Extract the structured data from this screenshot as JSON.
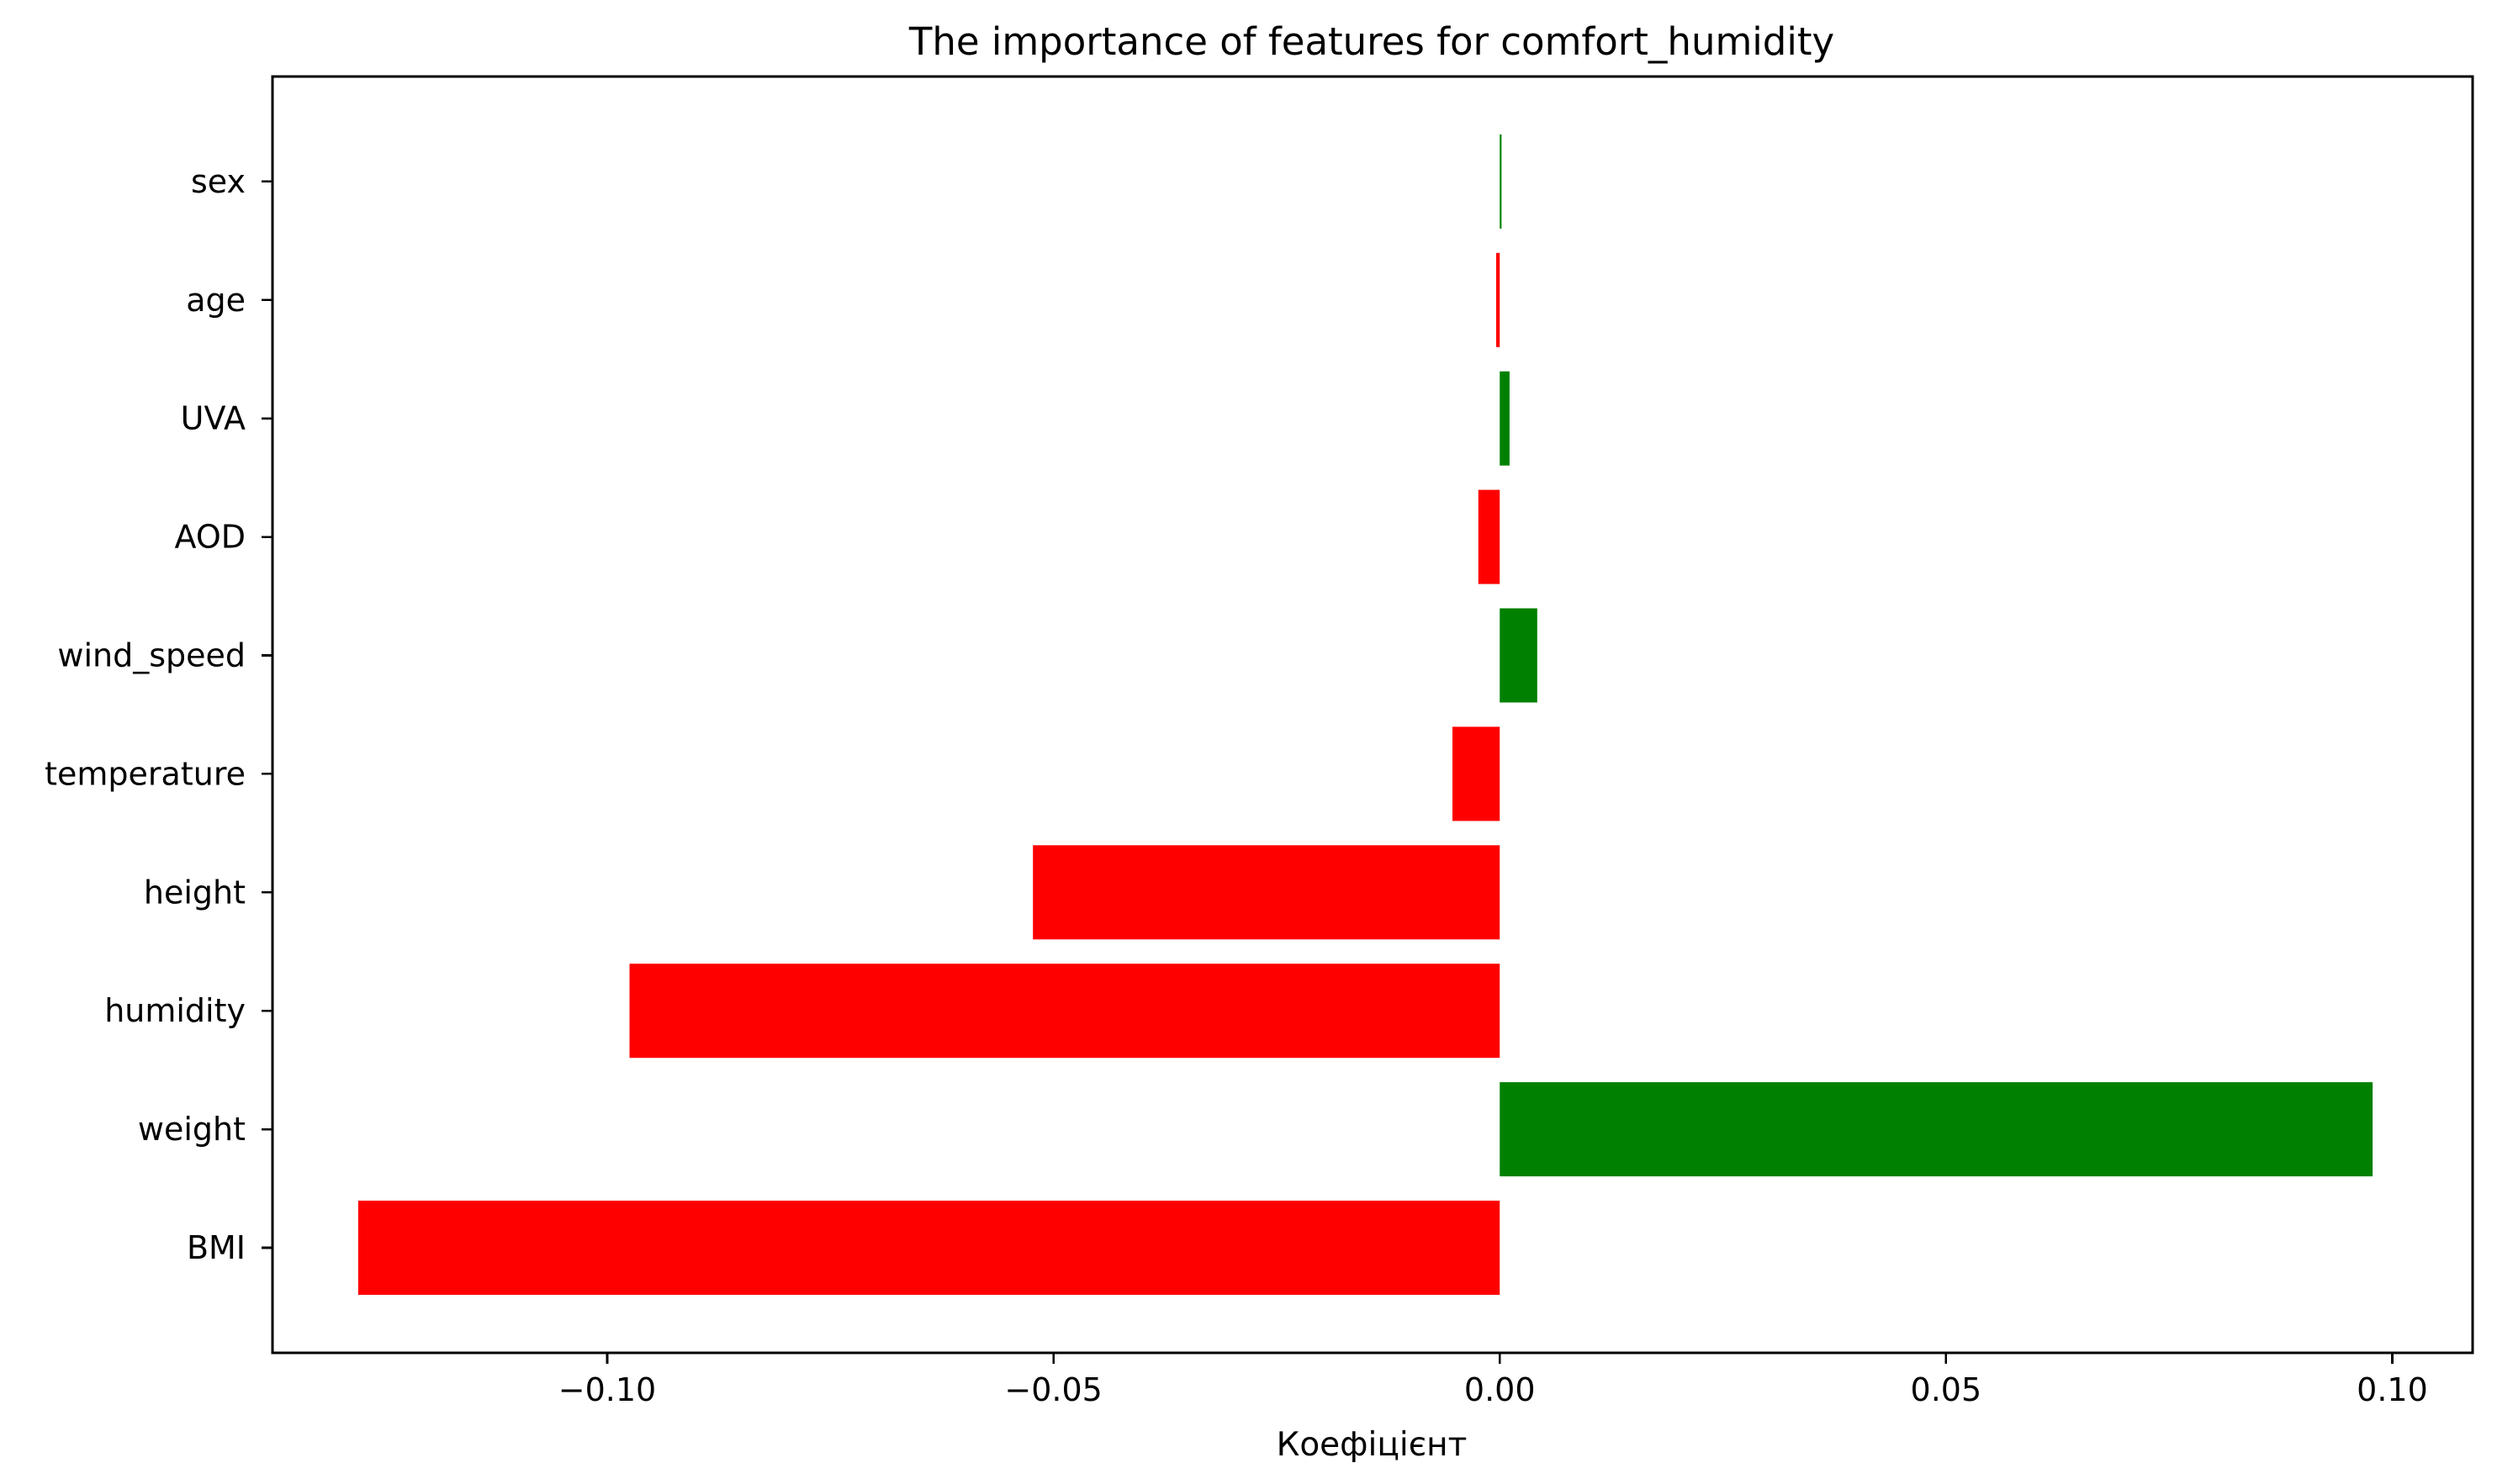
{
  "chart_data": {
    "type": "bar",
    "orientation": "horizontal",
    "title": "The importance of features for comfort_humidity",
    "xlabel": "Коефіцієнт",
    "ylabel": "",
    "xlim": [
      -0.1375,
      0.109
    ],
    "xticks": [
      -0.1,
      -0.05,
      0.0,
      0.05,
      0.1
    ],
    "xtick_labels": [
      "−0.10",
      "−0.05",
      "0.00",
      "0.05",
      "0.10"
    ],
    "grid": false,
    "categories": [
      "BMI",
      "weight",
      "humidity",
      "height",
      "temperature",
      "wind_speed",
      "AOD",
      "UVA",
      "age",
      "sex"
    ],
    "values": [
      -0.1279,
      0.0978,
      -0.0975,
      -0.0523,
      -0.0053,
      0.0042,
      -0.0024,
      0.0011,
      -0.0004,
      0.0002
    ],
    "colors": {
      "positive": "#008000",
      "negative": "#ff0000"
    }
  }
}
